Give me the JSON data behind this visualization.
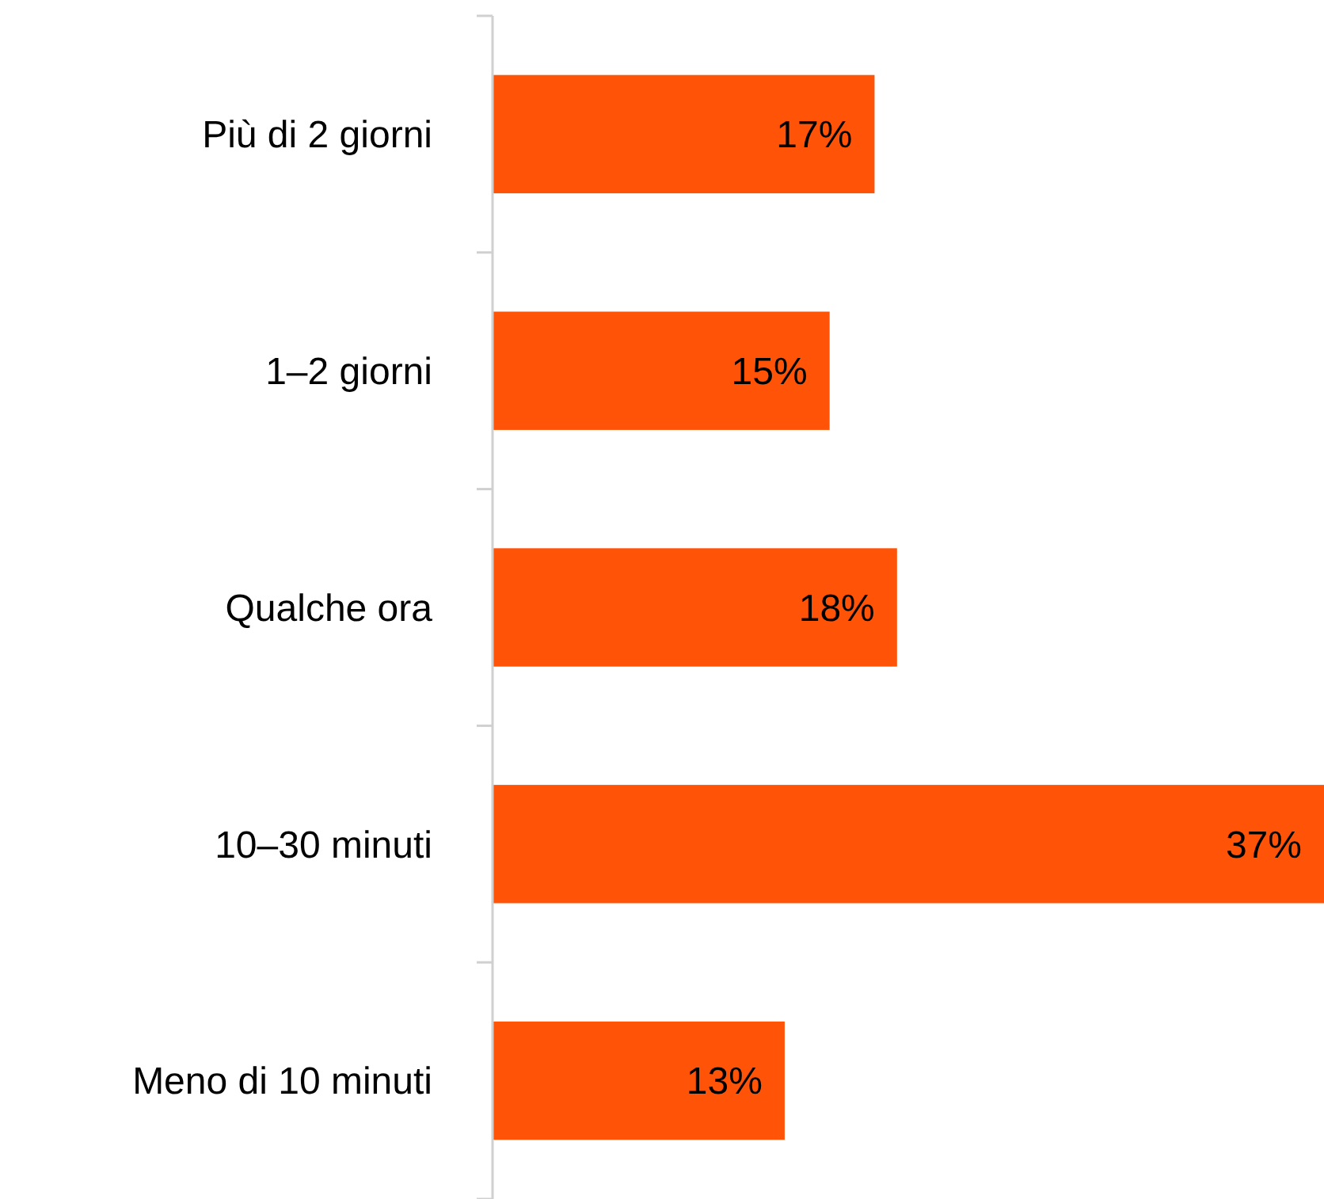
{
  "chart_data": {
    "type": "bar",
    "orientation": "horizontal",
    "categories": [
      "Più di 2 giorni",
      "1–2 giorni",
      "Qualche ora",
      "10–30 minuti",
      "Meno di 10 minuti"
    ],
    "values": [
      17,
      15,
      18,
      37,
      13
    ],
    "value_labels": [
      "17%",
      "15%",
      "18%",
      "37%",
      "13%"
    ],
    "color": "#ff5308"
  }
}
